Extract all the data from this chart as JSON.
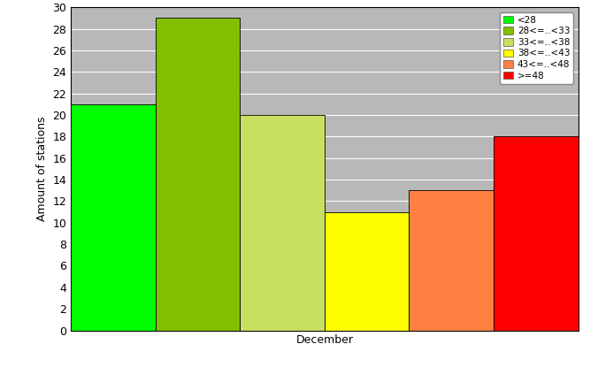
{
  "bars": [
    {
      "label": "<28",
      "value": 21,
      "color": "#00FF00"
    },
    {
      "label": "28<=..<33",
      "value": 29,
      "color": "#80C000"
    },
    {
      "label": "33<=..<38",
      "value": 20,
      "color": "#C8E060"
    },
    {
      "label": "38<=..<43",
      "value": 11,
      "color": "#FFFF00"
    },
    {
      "label": "43<=..<48",
      "value": 13,
      "color": "#FF8040"
    },
    {
      "label": ">=48",
      "value": 18,
      "color": "#FF0000"
    }
  ],
  "ylabel": "Amount of stations",
  "xlabel": "December",
  "ylim": [
    0,
    30
  ],
  "yticks": [
    0,
    2,
    4,
    6,
    8,
    10,
    12,
    14,
    16,
    18,
    20,
    22,
    24,
    26,
    28,
    30
  ],
  "plot_bg_color": "#B8B8B8",
  "fig_bg_color": "#C8C8C8",
  "below_plot_color": "#FFFFFF",
  "grid_color": "#FFFFFF",
  "fig_width": 6.67,
  "fig_height": 4.15,
  "legend_fontsize": 7.5,
  "axis_fontsize": 9
}
